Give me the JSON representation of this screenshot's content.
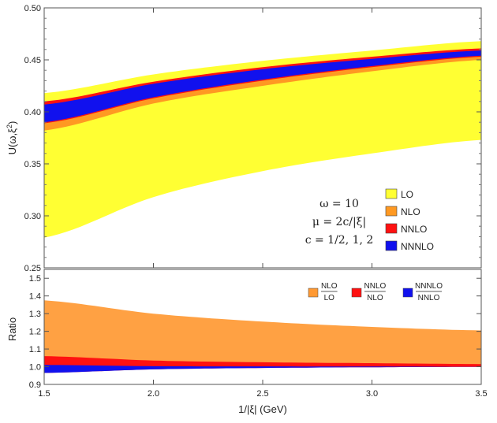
{
  "chart_data": [
    {
      "type": "area",
      "panel": "top",
      "ylabel": "U(ω,ξ²)",
      "xlim": [
        1.5,
        3.5
      ],
      "ylim": [
        0.25,
        0.5
      ],
      "yticks": [
        "0.25",
        "0.30",
        "0.35",
        "0.40",
        "0.45",
        "0.50"
      ],
      "annotations": [
        "ω = 10",
        "μ = 2c/|ξ|",
        "c = 1/2, 1, 2"
      ],
      "legend": [
        "LO",
        "NLO",
        "NNLO",
        "NNNLO"
      ],
      "legend_position": "lower-right",
      "bands": [
        {
          "name": "LO",
          "color": "#ffff33",
          "x": [
            1.5,
            2.0,
            2.5,
            3.0,
            3.5
          ],
          "lower": [
            0.279,
            0.318,
            0.343,
            0.36,
            0.373
          ],
          "upper": [
            0.418,
            0.436,
            0.449,
            0.459,
            0.468
          ]
        },
        {
          "name": "NLO",
          "color": "#ff9922",
          "x": [
            1.5,
            2.0,
            2.5,
            3.0,
            3.5
          ],
          "lower": [
            0.382,
            0.408,
            0.425,
            0.439,
            0.45
          ],
          "upper": [
            0.409,
            0.428,
            0.442,
            0.452,
            0.461
          ]
        },
        {
          "name": "NNLO",
          "color": "#ff1111",
          "x": [
            1.5,
            2.0,
            2.5,
            3.0,
            3.5
          ],
          "lower": [
            0.389,
            0.413,
            0.43,
            0.443,
            0.453
          ],
          "upper": [
            0.41,
            0.429,
            0.443,
            0.453,
            0.461
          ]
        },
        {
          "name": "NNNLO",
          "color": "#1111ee",
          "x": [
            1.5,
            2.0,
            2.5,
            3.0,
            3.5
          ],
          "lower": [
            0.39,
            0.414,
            0.431,
            0.444,
            0.454
          ],
          "upper": [
            0.407,
            0.427,
            0.441,
            0.451,
            0.459
          ]
        }
      ]
    },
    {
      "type": "area",
      "panel": "bottom",
      "xlabel": "1/|ξ| (GeV)",
      "ylabel": "Ratio",
      "xlim": [
        1.5,
        3.5
      ],
      "ylim": [
        0.9,
        1.55
      ],
      "xticks": [
        "1.5",
        "2.0",
        "2.5",
        "3.0",
        "3.5"
      ],
      "yticks": [
        "0.9",
        "1.0",
        "1.1",
        "1.2",
        "1.3",
        "1.4",
        "1.5"
      ],
      "legend": [
        {
          "num": "NLO",
          "den": "LO",
          "color": "#ff9933"
        },
        {
          "num": "NNLO",
          "den": "NLO",
          "color": "#ff1111"
        },
        {
          "num": "NNNLO",
          "den": "NNLO",
          "color": "#1111ee"
        }
      ],
      "legend_position": "top-right",
      "bands": [
        {
          "name": "NLO/LO",
          "color": "#ff9933",
          "x": [
            1.5,
            2.0,
            2.5,
            3.0,
            3.5
          ],
          "lower": [
            0.98,
            0.99,
            0.995,
            1.0,
            1.0
          ],
          "upper": [
            1.375,
            1.3,
            1.255,
            1.225,
            1.205
          ]
        },
        {
          "name": "NNLO/NLO",
          "color": "#ff1111",
          "x": [
            1.5,
            2.0,
            2.5,
            3.0,
            3.5
          ],
          "lower": [
            0.965,
            0.985,
            0.993,
            0.997,
            0.999
          ],
          "upper": [
            1.06,
            1.035,
            1.025,
            1.02,
            1.015
          ]
        },
        {
          "name": "NNNLO/NNLO",
          "color": "#1111ee",
          "x": [
            1.5,
            2.0,
            2.5,
            3.0,
            3.5
          ],
          "lower": [
            0.965,
            0.985,
            0.993,
            0.997,
            0.999
          ],
          "upper": [
            1.01,
            1.003,
            1.002,
            1.001,
            1.0
          ]
        }
      ]
    }
  ]
}
